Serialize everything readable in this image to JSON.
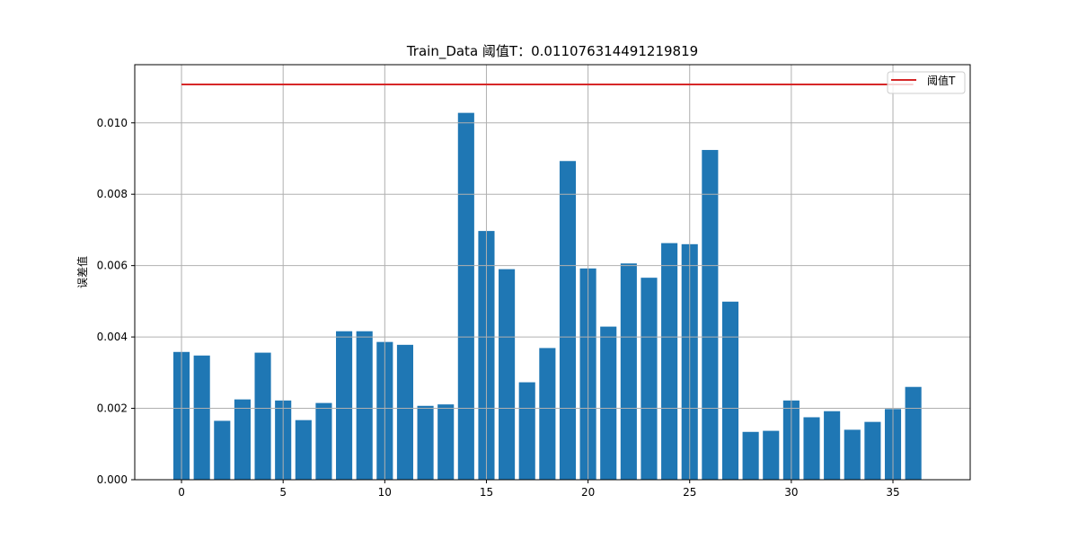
{
  "chart_data": {
    "type": "bar",
    "title": "Train_Data  阈值T：0.011076314491219819",
    "xlabel": "",
    "ylabel": "误差值",
    "x": [
      0,
      1,
      2,
      3,
      4,
      5,
      6,
      7,
      8,
      9,
      10,
      11,
      12,
      13,
      14,
      15,
      16,
      17,
      18,
      19,
      20,
      21,
      22,
      23,
      24,
      25,
      26,
      27,
      28,
      29,
      30,
      31,
      32,
      33,
      34,
      35,
      36
    ],
    "values": [
      0.00358,
      0.00348,
      0.00165,
      0.00225,
      0.00356,
      0.00222,
      0.00167,
      0.00215,
      0.00416,
      0.00416,
      0.00386,
      0.00378,
      0.00207,
      0.00211,
      0.01028,
      0.00697,
      0.0059,
      0.00273,
      0.00369,
      0.00893,
      0.00592,
      0.00429,
      0.00606,
      0.00566,
      0.00663,
      0.0066,
      0.00924,
      0.00499,
      0.00134,
      0.00137,
      0.00222,
      0.00175,
      0.00192,
      0.0014,
      0.00162,
      0.00198,
      0.0026
    ],
    "bar_color": "#1f77b4",
    "threshold": {
      "name": "阈值T",
      "value": 0.011076314491219819,
      "color": "#d62728",
      "x_range": [
        0,
        36
      ]
    },
    "xlim": [
      -2.3,
      38.8
    ],
    "ylim": [
      0,
      0.01163
    ],
    "xticks": [
      0,
      5,
      10,
      15,
      20,
      25,
      30,
      35
    ],
    "yticks": [
      0.0,
      0.002,
      0.004,
      0.006,
      0.008,
      0.01
    ],
    "ytick_labels": [
      "0.000",
      "0.002",
      "0.004",
      "0.006",
      "0.008",
      "0.010"
    ],
    "grid": true,
    "legend_position": "upper right"
  }
}
